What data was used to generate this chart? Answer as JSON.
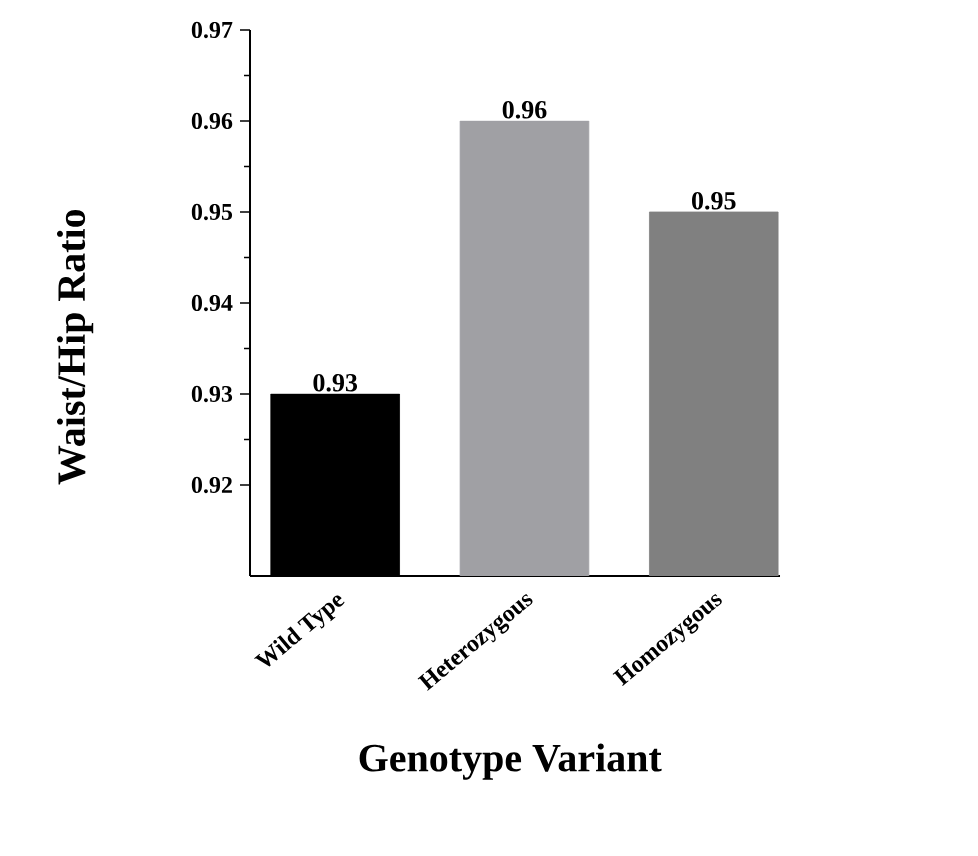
{
  "chart_data": {
    "type": "bar",
    "xlabel": "Genotype Variant",
    "ylabel": "Waist/Hip Ratio",
    "categories": [
      "Wild Type",
      "Heterozygous",
      "Homozygous"
    ],
    "values": [
      0.93,
      0.96,
      0.95
    ],
    "colors": [
      "#000000",
      "#a0a0a4",
      "#808080"
    ],
    "ylim": [
      0.91,
      0.97
    ],
    "yticks": [
      0.92,
      0.93,
      0.94,
      0.95,
      0.96,
      0.97
    ],
    "data_labels": true,
    "grid": false
  }
}
